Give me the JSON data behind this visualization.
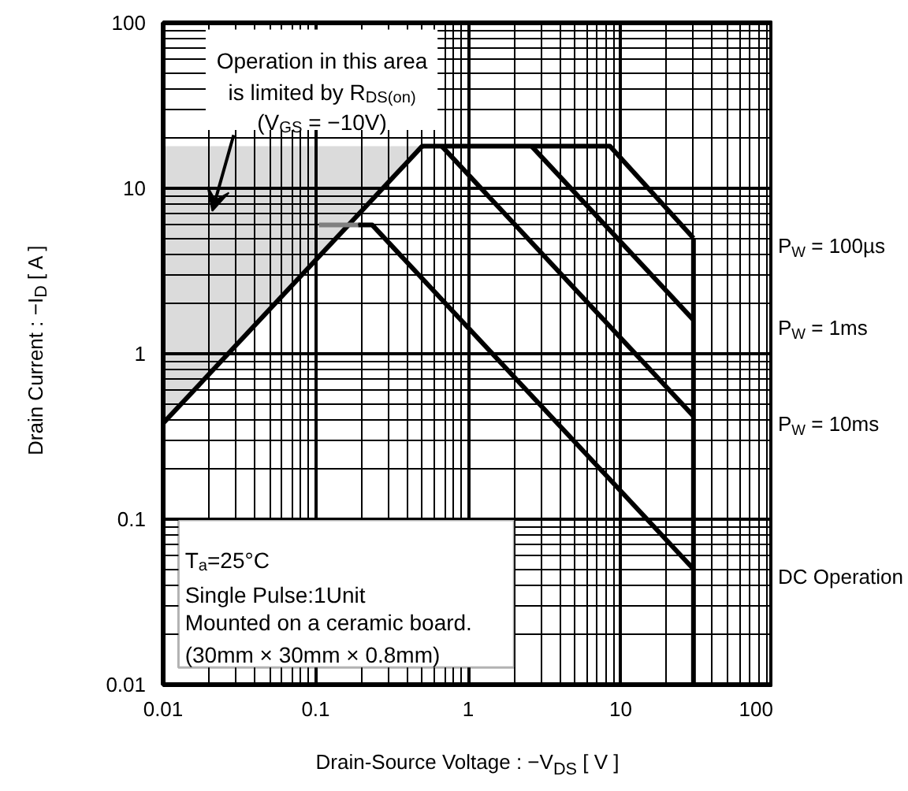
{
  "chart_data": {
    "type": "line",
    "xlabel": "Drain-Source  Voltage : −V$_{DS}$ [ V ]",
    "ylabel": "Drain Current : −I$_{D}$ [ A ]",
    "xlim": [
      0.01,
      100
    ],
    "ylim": [
      0.01,
      100
    ],
    "xticks": [
      0.01,
      0.1,
      1,
      10,
      100
    ],
    "yticks": [
      0.01,
      0.1,
      1,
      10,
      100
    ],
    "log": "xy",
    "grid": true,
    "legend": false,
    "series": [
      {
        "color": "#000000",
        "x": [
          0.01,
          0.5
        ],
        "values": [
          0.38,
          18
        ],
        "lower": [
          0.38,
          18
        ],
        "upper": [
          18,
          18
        ]
      },
      {
        "name": "P$_{W}$ = 100µs",
        "color": "#000000",
        "x": [
          0.5,
          8.5,
          30
        ],
        "values": [
          18,
          18,
          5
        ]
      },
      {
        "name": "P$_{W}$ = 1ms",
        "color": "#000000",
        "x": [
          2.6,
          30
        ],
        "values": [
          18,
          1.6
        ]
      },
      {
        "name": "P$_{W}$ = 10ms",
        "color": "#000000",
        "x": [
          0.67,
          30
        ],
        "values": [
          18,
          0.42
        ]
      },
      {
        "color": "#808080",
        "x": [
          0.105,
          0.19
        ],
        "values": [
          6,
          6
        ]
      },
      {
        "name": "DC Operation",
        "color": "#000000",
        "x": [
          0.19,
          0.235,
          30
        ],
        "values": [
          6,
          6,
          0.05
        ]
      },
      {
        "color": "#000000",
        "x": [
          30,
          30
        ],
        "values": [
          5,
          0.01
        ]
      }
    ],
    "annotations": [
      "Operation in this area\nis limited by R$_{DS(on)}$\n(V$_{GS}$ = −10V)",
      "T$_{a}$=25°C\nSingle Pulse:1Unit\nMounted on a ceramic board.\n(30mm × 30mm × 0.8mm)"
    ]
  }
}
